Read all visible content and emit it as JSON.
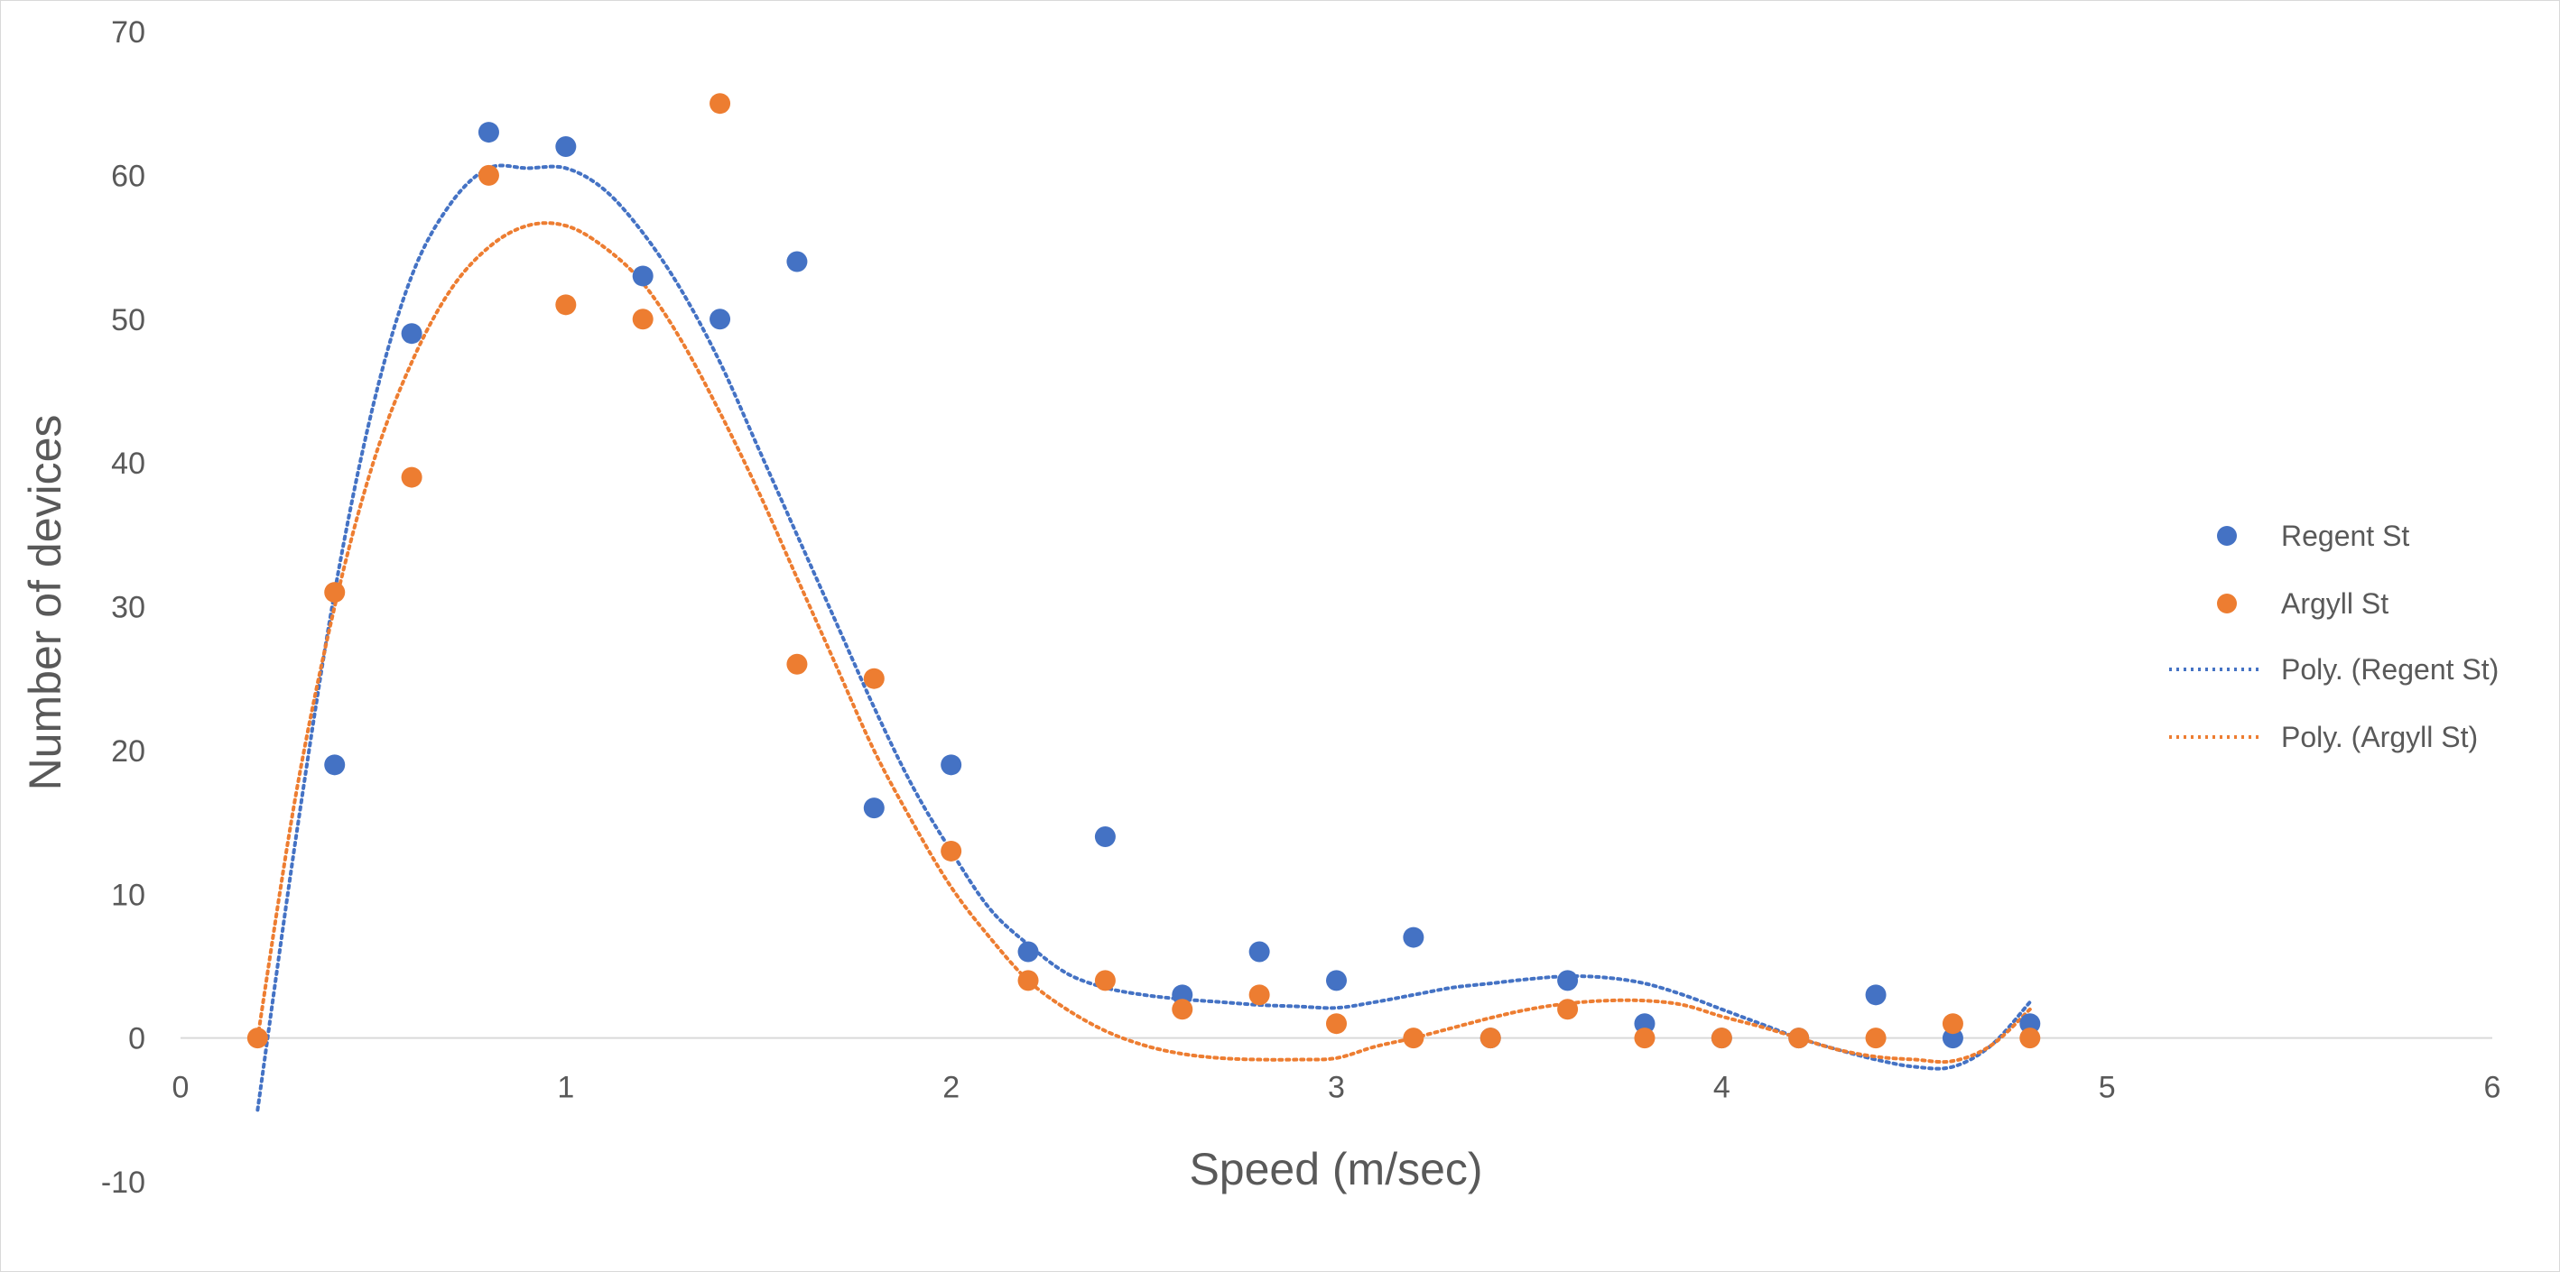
{
  "chart_data": {
    "type": "scatter",
    "xlabel": "Speed (m/sec)",
    "ylabel": "Number of devices",
    "xlim": [
      0,
      6
    ],
    "ylim": [
      -10,
      70
    ],
    "x_ticks": [
      "0",
      "1",
      "2",
      "3",
      "4",
      "5",
      "6"
    ],
    "y_ticks": [
      "-10",
      "0",
      "10",
      "20",
      "30",
      "40",
      "50",
      "60",
      "70"
    ],
    "grid": false,
    "legend_position": "right",
    "colors": {
      "regent": "#4472c4",
      "argyll": "#ed7d31",
      "axis": "#d9d9d9",
      "text": "#595959"
    },
    "series": [
      {
        "name": "Regent St",
        "x": [
          0.4,
          0.6,
          0.8,
          1.0,
          1.2,
          1.4,
          1.6,
          1.8,
          2.0,
          2.2,
          2.4,
          2.6,
          2.8,
          3.0,
          3.2,
          3.4,
          3.6,
          3.8,
          4.0,
          4.2,
          4.4,
          4.6,
          4.8
        ],
        "y": [
          19,
          49,
          63,
          62,
          53,
          50,
          54,
          16,
          19,
          6,
          14,
          3,
          6,
          4,
          7,
          0,
          4,
          1,
          0,
          0,
          3,
          0,
          1
        ]
      },
      {
        "name": "Argyll St",
        "x": [
          0.2,
          0.4,
          0.6,
          0.8,
          1.0,
          1.2,
          1.4,
          1.6,
          1.8,
          2.0,
          2.2,
          2.4,
          2.6,
          2.8,
          3.0,
          3.2,
          3.4,
          3.6,
          3.8,
          4.0,
          4.2,
          4.4,
          4.6,
          4.8
        ],
        "y": [
          0,
          31,
          39,
          60,
          51,
          50,
          65,
          26,
          25,
          13,
          4,
          4,
          2,
          3,
          1,
          0,
          0,
          2,
          0,
          0,
          0,
          0,
          1,
          0
        ]
      }
    ],
    "trendlines": [
      {
        "name": "Poly. (Regent St)",
        "style": "dotted",
        "x": [
          0.2,
          0.3,
          0.4,
          0.5,
          0.6,
          0.7,
          0.8,
          0.9,
          1.0,
          1.1,
          1.2,
          1.3,
          1.4,
          1.5,
          1.6,
          1.7,
          1.8,
          1.9,
          2.0,
          2.1,
          2.2,
          2.3,
          2.4,
          2.5,
          2.6,
          2.7,
          2.8,
          2.9,
          3.0,
          3.1,
          3.2,
          3.3,
          3.4,
          3.5,
          3.6,
          3.7,
          3.8,
          3.9,
          4.0,
          4.1,
          4.2,
          4.3,
          4.4,
          4.5,
          4.6,
          4.7,
          4.8
        ],
        "y": [
          -5,
          14,
          31,
          44,
          53,
          58,
          60.5,
          60.5,
          60.5,
          59,
          56,
          52,
          47,
          41,
          35,
          29,
          23,
          17.5,
          13,
          9,
          6.5,
          4.5,
          3.5,
          3,
          2.7,
          2.5,
          2.3,
          2.2,
          2.1,
          2.5,
          3,
          3.5,
          3.8,
          4.1,
          4.3,
          4.2,
          3.8,
          3,
          2,
          1,
          0,
          -0.8,
          -1.5,
          -2,
          -2,
          -0.5,
          2.5
        ]
      },
      {
        "name": "Poly. (Argyll St)",
        "style": "dotted",
        "x": [
          0.2,
          0.3,
          0.4,
          0.5,
          0.6,
          0.7,
          0.8,
          0.9,
          1.0,
          1.1,
          1.2,
          1.3,
          1.4,
          1.5,
          1.6,
          1.7,
          1.8,
          1.9,
          2.0,
          2.1,
          2.2,
          2.3,
          2.4,
          2.5,
          2.6,
          2.7,
          2.8,
          2.9,
          3.0,
          3.1,
          3.2,
          3.3,
          3.4,
          3.5,
          3.6,
          3.7,
          3.8,
          3.9,
          4.0,
          4.1,
          4.2,
          4.3,
          4.4,
          4.5,
          4.6,
          4.7,
          4.8
        ],
        "y": [
          0,
          17,
          30,
          40,
          47,
          52,
          55,
          56.5,
          56.5,
          55,
          52.5,
          48.5,
          43.5,
          38,
          32,
          26,
          20,
          15,
          10.5,
          7,
          4,
          2,
          0.5,
          -0.5,
          -1.1,
          -1.4,
          -1.5,
          -1.5,
          -1.4,
          -0.6,
          0,
          0.7,
          1.4,
          2,
          2.4,
          2.6,
          2.6,
          2.3,
          1.5,
          0.8,
          0,
          -0.8,
          -1.3,
          -1.5,
          -1.6,
          -0.5,
          2
        ]
      }
    ]
  }
}
